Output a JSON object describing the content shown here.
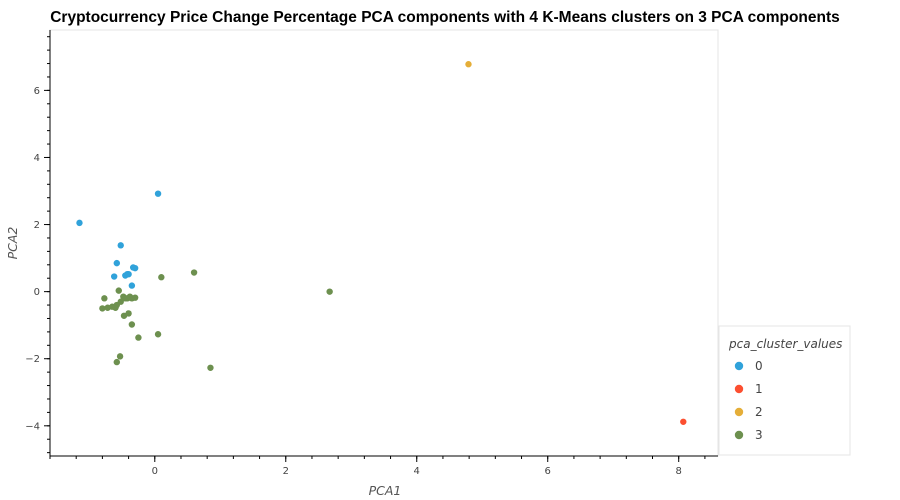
{
  "chart_data": {
    "type": "scatter",
    "title": "Cryptocurrency Price Change Percentage PCA components with 4 K-Means clusters on 3 PCA components",
    "xlabel": "PCA1",
    "ylabel": "PCA2",
    "xlim": [
      -1.6,
      8.6
    ],
    "ylim": [
      -4.9,
      7.8
    ],
    "x_ticks": [
      0,
      2,
      4,
      6,
      8
    ],
    "y_ticks": [
      -4,
      -2,
      0,
      2,
      4,
      6
    ],
    "x_tick_labels": [
      "0",
      "2",
      "4",
      "6",
      "8"
    ],
    "y_tick_labels": [
      "−4",
      "−2",
      "0",
      "2",
      "4",
      "6"
    ],
    "grid": false,
    "legend": {
      "title": "pca_cluster_values",
      "placement": "bottom-right outside",
      "entries": [
        "0",
        "1",
        "2",
        "3"
      ]
    },
    "colors": [
      "#30a2da",
      "#fc4f30",
      "#e5ae38",
      "#6d904f"
    ],
    "series": [
      {
        "name": "0",
        "x": [
          0.05,
          -1.15,
          -0.52,
          -0.58,
          -0.42,
          -0.45,
          -0.4,
          -0.35,
          -0.33,
          -0.3,
          -0.62
        ],
        "y": [
          2.92,
          2.05,
          1.38,
          0.85,
          0.52,
          0.48,
          0.52,
          0.18,
          0.72,
          0.7,
          0.45
        ]
      },
      {
        "name": "1",
        "x": [
          8.07
        ],
        "y": [
          -3.88
        ]
      },
      {
        "name": "2",
        "x": [
          4.79
        ],
        "y": [
          6.78
        ]
      },
      {
        "name": "3",
        "x": [
          0.6,
          0.1,
          2.67,
          -0.77,
          -0.72,
          -0.65,
          -0.6,
          -0.55,
          -0.58,
          -0.52,
          -0.48,
          -0.45,
          -0.42,
          -0.38,
          -0.35,
          -0.3,
          -0.47,
          -0.4,
          -0.35,
          0.05,
          -0.25,
          -0.58,
          -0.53,
          0.85,
          -0.8
        ],
        "y": [
          0.57,
          0.43,
          0.0,
          -0.2,
          -0.48,
          -0.45,
          -0.48,
          0.03,
          -0.4,
          -0.3,
          -0.15,
          -0.2,
          -0.2,
          -0.15,
          -0.2,
          -0.18,
          -0.72,
          -0.65,
          -0.98,
          -1.27,
          -1.37,
          -2.1,
          -1.93,
          -2.27,
          -0.5
        ]
      }
    ]
  }
}
